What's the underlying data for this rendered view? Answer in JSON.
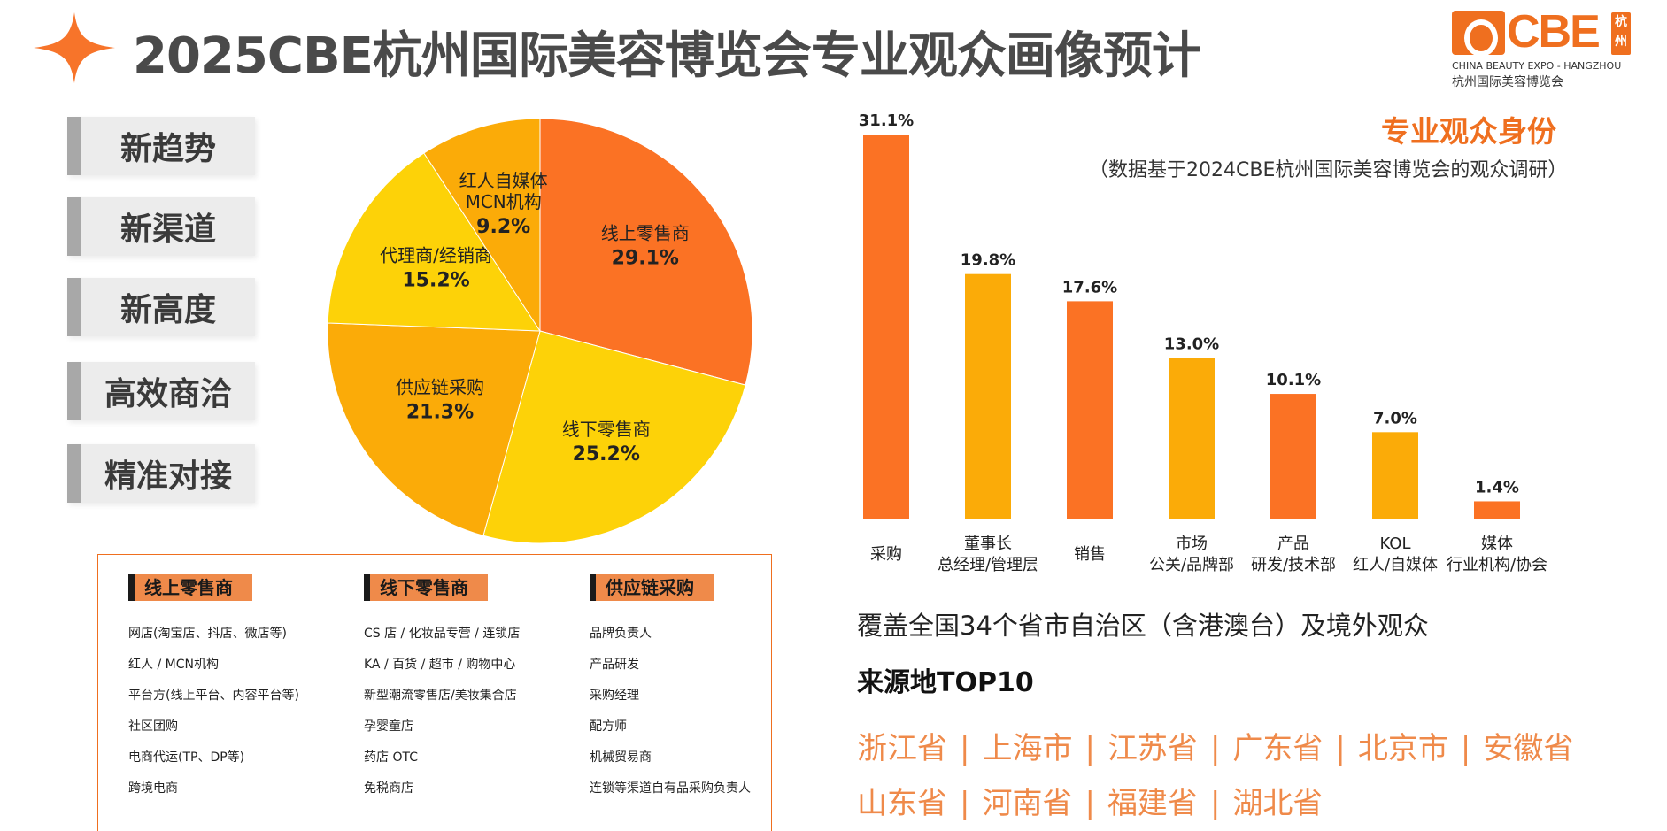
{
  "header": {
    "title": "2025CBE杭州国际美容博览会专业观众画像预计",
    "accent_color": "#ef6f1f",
    "star_icon": "four-point-star-icon"
  },
  "logo": {
    "brand": "CBE",
    "city": "杭州",
    "english": "CHINA BEAUTY EXPO - HANGZHOU",
    "chinese": "杭州国际美容博览会"
  },
  "tags": [
    "新趋势",
    "新渠道",
    "新高度",
    "高效商洽",
    "精准对接"
  ],
  "chart_data": [
    {
      "type": "pie",
      "slices": [
        {
          "label": "线上零售商",
          "value": 29.1,
          "display": "29.1%",
          "color": "#fb7224"
        },
        {
          "label": "线下零售商",
          "value": 25.2,
          "display": "25.2%",
          "color": "#fdd208"
        },
        {
          "label": "供应链采购",
          "value": 21.3,
          "display": "21.3%",
          "color": "#fbab08"
        },
        {
          "label": "代理商/经销商",
          "value": 15.2,
          "display": "15.2%",
          "color": "#fdd208"
        },
        {
          "label": "红人自媒体 MCN机构",
          "label_lines": [
            "红人自媒体",
            "MCN机构"
          ],
          "value": 9.2,
          "display": "9.2%",
          "color": "#fbab08"
        }
      ]
    },
    {
      "type": "bar",
      "title": "专业观众身份",
      "subtitle": "（数据基于2024CBE杭州国际美容博览会的观众调研）",
      "categories": [
        [
          "采购"
        ],
        [
          "董事长",
          "总经理/管理层"
        ],
        [
          "销售"
        ],
        [
          "市场",
          "公关/品牌部"
        ],
        [
          "产品",
          "研发/技术部"
        ],
        [
          "KOL",
          "红人/自媒体"
        ],
        [
          "媒体",
          "行业机构/协会"
        ]
      ],
      "values": [
        31.1,
        19.8,
        17.6,
        13.0,
        10.1,
        7.0,
        1.4
      ],
      "value_labels": [
        "31.1%",
        "19.8%",
        "17.6%",
        "13.0%",
        "10.1%",
        "7.0%",
        "1.4%"
      ],
      "colors": [
        "#fb7224",
        "#fbab08",
        "#fb7224",
        "#fbab08",
        "#fb7224",
        "#fbab08",
        "#fb7224"
      ],
      "ylim": [
        0,
        31.1
      ]
    }
  ],
  "categories_box": {
    "columns": [
      {
        "title": "线上零售商",
        "items": [
          "网店(淘宝店、抖店、微店等)",
          "红人 / MCN机构",
          "平台方(线上平台、内容平台等)",
          "社区团购",
          "电商代运(TP、DP等)",
          "跨境电商"
        ]
      },
      {
        "title": "线下零售商",
        "items": [
          "CS 店 / 化妆品专营 / 连锁店",
          "KA / 百货 / 超市 / 购物中心",
          "新型潮流零售店/美妆集合店",
          "孕婴童店",
          "药店 OTC",
          "免税商店"
        ]
      },
      {
        "title": "供应链采购",
        "items": [
          "品牌负责人",
          "产品研发",
          "采购经理",
          "配方师",
          "机械贸易商",
          "连锁等渠道自有品采购负责人"
        ]
      }
    ]
  },
  "coverage": {
    "text": "覆盖全国34个省市自治区（含港澳台）及境外观众",
    "top10_title": "来源地TOP10",
    "row1": [
      "浙江省",
      "上海市",
      "江苏省",
      "广东省",
      "北京市",
      "安徽省"
    ],
    "row2": [
      "山东省",
      "河南省",
      "福建省",
      "湖北省"
    ],
    "separator": "|"
  }
}
